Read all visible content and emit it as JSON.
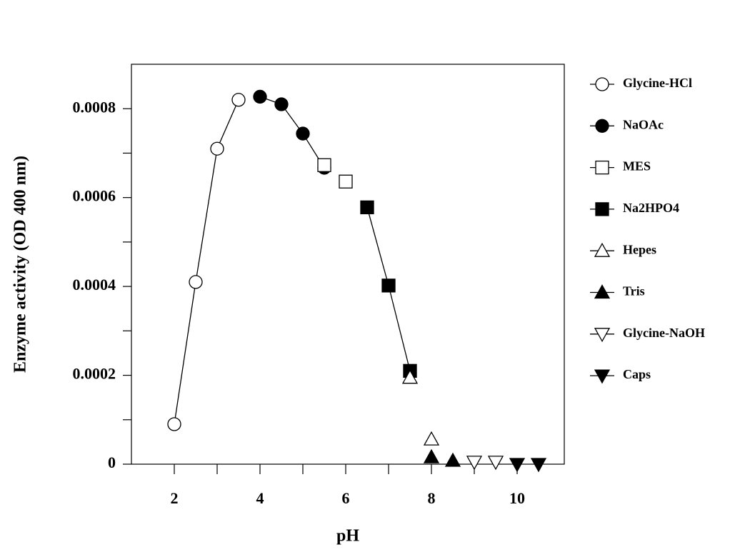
{
  "chart_data": {
    "type": "scatter-line",
    "xlabel": "pH",
    "ylabel": "Enzyme activity (OD 400 nm)",
    "xlim": [
      1,
      11.1
    ],
    "xticks": [
      2,
      4,
      6,
      8,
      10
    ],
    "xminorticks": [
      3,
      5,
      7,
      9
    ],
    "ylim": [
      0,
      0.0009
    ],
    "yticks": [
      0,
      0.0002,
      0.0004,
      0.0006,
      0.0008
    ],
    "yminorticks": [
      0.0001,
      0.0003,
      0.0005,
      0.0007
    ],
    "legend": "outside-right",
    "series": [
      {
        "name": "Glycine-HCl",
        "color": "#000000",
        "marker": "circle",
        "filled": false,
        "line": true,
        "x": [
          2,
          2.5,
          3,
          3.5
        ],
        "values": [
          9e-05,
          0.00041,
          0.00071,
          0.00082
        ]
      },
      {
        "name": "NaOAc",
        "color": "#000000",
        "marker": "circle",
        "filled": true,
        "line": true,
        "x": [
          4,
          4.5,
          5,
          5.5
        ],
        "values": [
          0.000827,
          0.00081,
          0.000744,
          0.000667
        ]
      },
      {
        "name": "MES",
        "color": "#000000",
        "marker": "square",
        "filled": false,
        "line": false,
        "x": [
          5.5,
          6
        ],
        "values": [
          0.000673,
          0.000636
        ]
      },
      {
        "name": "Na2HPO4",
        "color": "#000000",
        "marker": "square",
        "filled": true,
        "line": true,
        "x": [
          6.5,
          7,
          7.5
        ],
        "values": [
          0.000578,
          0.000402,
          0.00021
        ]
      },
      {
        "name": "Hepes",
        "color": "#000000",
        "marker": "triangle-up",
        "filled": false,
        "line": false,
        "x": [
          7.5,
          8
        ],
        "values": [
          0.000195,
          5.6e-05
        ]
      },
      {
        "name": "Tris",
        "color": "#000000",
        "marker": "triangle-up",
        "filled": true,
        "line": false,
        "x": [
          8,
          8.5
        ],
        "values": [
          1.6e-05,
          8e-06
        ]
      },
      {
        "name": "Glycine-NaOH",
        "color": "#000000",
        "marker": "triangle-down",
        "filled": false,
        "line": false,
        "x": [
          9,
          9.5
        ],
        "values": [
          5e-06,
          5e-06
        ]
      },
      {
        "name": "Caps",
        "color": "#000000",
        "marker": "triangle-down",
        "filled": true,
        "line": false,
        "x": [
          10,
          10.5
        ],
        "values": [
          0,
          0
        ]
      }
    ]
  }
}
